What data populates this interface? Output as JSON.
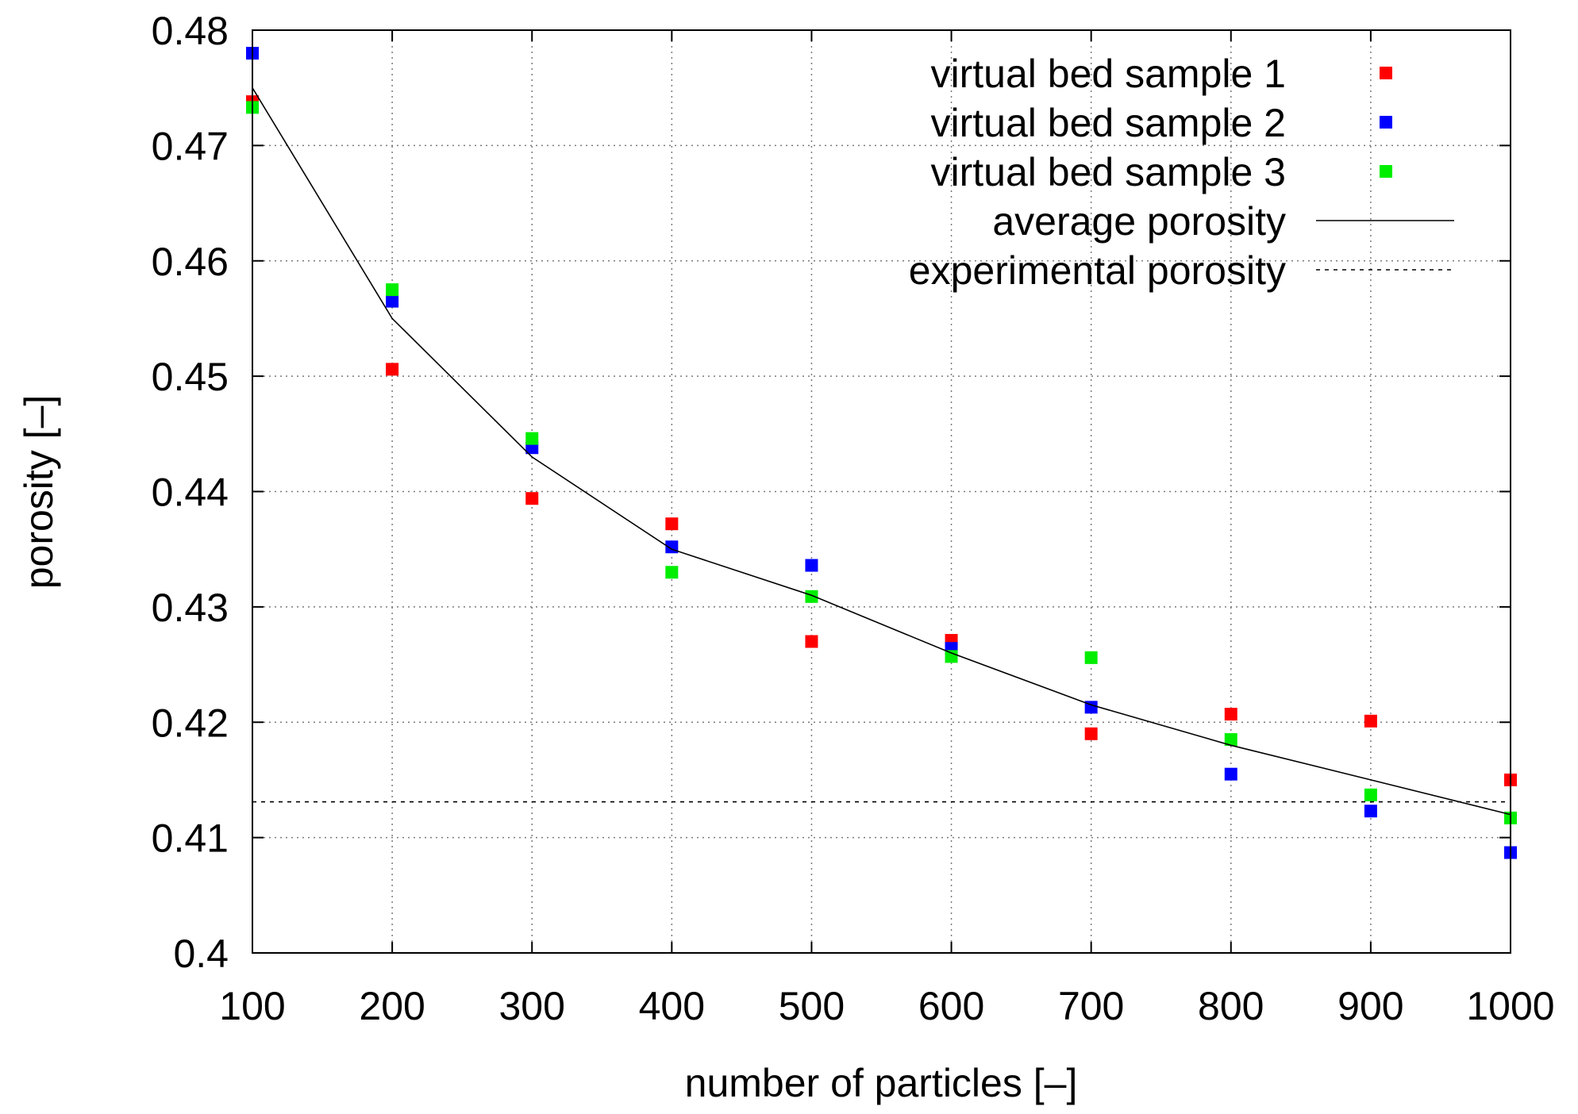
{
  "chart_data": {
    "type": "scatter",
    "title": "",
    "xlabel": "number of particles [–]",
    "ylabel": "porosity [–]",
    "xlim": [
      100,
      1000
    ],
    "ylim": [
      0.4,
      0.48
    ],
    "grid": true,
    "legend_position": "top-right",
    "x_ticks": [
      100,
      200,
      300,
      400,
      500,
      600,
      700,
      800,
      900,
      1000
    ],
    "x_tick_labels": [
      "100",
      "200",
      "300",
      "400",
      "500",
      "600",
      "700",
      "800",
      "900",
      "1000"
    ],
    "y_ticks": [
      0.4,
      0.41,
      0.42,
      0.43,
      0.44,
      0.45,
      0.46,
      0.47,
      0.48
    ],
    "y_tick_labels": [
      "0.4",
      "0.41",
      "0.42",
      "0.43",
      "0.44",
      "0.45",
      "0.46",
      "0.47",
      "0.48"
    ],
    "x": [
      100,
      200,
      300,
      400,
      500,
      600,
      700,
      800,
      900,
      1000
    ],
    "series": [
      {
        "name": "virtual bed sample 1",
        "kind": "points",
        "color": "#ff0000",
        "values": [
          0.4738,
          0.4506,
          0.4394,
          0.4372,
          0.427,
          0.4271,
          0.419,
          0.4207,
          0.4201,
          0.415
        ]
      },
      {
        "name": "virtual bed sample 2",
        "kind": "points",
        "color": "#0000ff",
        "values": [
          0.478,
          0.4565,
          0.4438,
          0.4352,
          0.4336,
          0.4264,
          0.4213,
          0.4155,
          0.4123,
          0.4087
        ]
      },
      {
        "name": "virtual bed sample 3",
        "kind": "points",
        "color": "#00ee00",
        "values": [
          0.4733,
          0.4575,
          0.4446,
          0.433,
          0.4309,
          0.4257,
          0.4256,
          0.4185,
          0.4137,
          0.4117
        ]
      },
      {
        "name": "average porosity",
        "kind": "line",
        "color": "#000000",
        "values": [
          0.475,
          0.455,
          0.443,
          0.435,
          0.431,
          0.426,
          0.4215,
          0.418,
          0.415,
          0.412
        ]
      },
      {
        "name": "experimental porosity",
        "kind": "dashed",
        "color": "#000000",
        "values": [
          0.4131,
          0.4131,
          0.4131,
          0.4131,
          0.4131,
          0.4131,
          0.4131,
          0.4131,
          0.4131,
          0.4131
        ]
      }
    ]
  }
}
